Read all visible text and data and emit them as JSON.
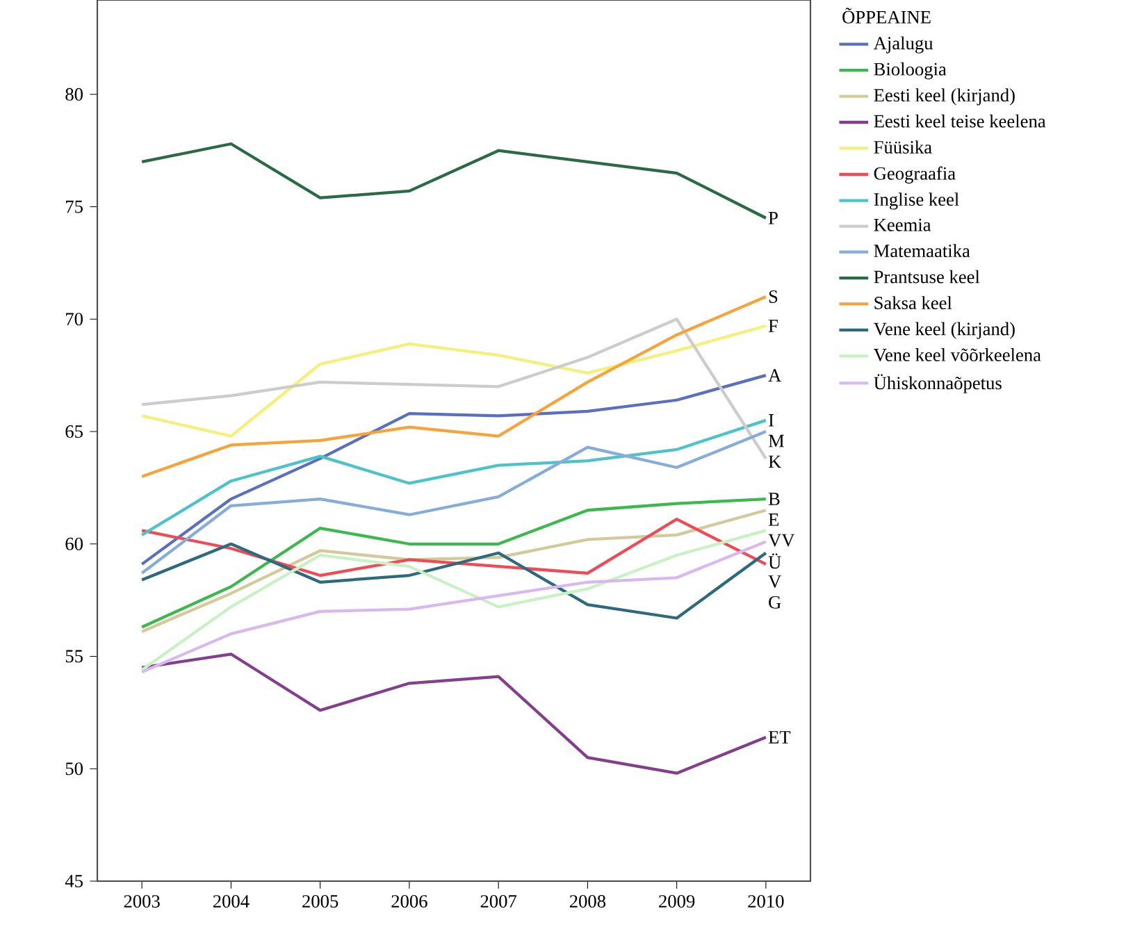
{
  "chart_data": {
    "type": "line",
    "legend_title": "ÕPPEAINE",
    "x": [
      2003,
      2004,
      2005,
      2006,
      2007,
      2008,
      2009,
      2010
    ],
    "xlim": [
      2002.5,
      2010.5
    ],
    "xticks": [
      2003,
      2004,
      2005,
      2006,
      2007,
      2008,
      2009,
      2010
    ],
    "ylim": [
      45,
      84.2
    ],
    "yticks": [
      45,
      50,
      55,
      60,
      65,
      70,
      75,
      80
    ],
    "grid": false,
    "legend": "right",
    "marker": "none",
    "line_style": "solid",
    "series": [
      {
        "name": "Ajalugu",
        "color": "#5a6fbf",
        "values": [
          59.1,
          62.0,
          63.8,
          65.8,
          65.7,
          65.9,
          66.4,
          67.5
        ]
      },
      {
        "name": "Bioloogia",
        "color": "#3cb94e",
        "values": [
          56.3,
          58.1,
          60.7,
          60.0,
          60.0,
          61.5,
          61.8,
          62.0
        ]
      },
      {
        "name": "Eesti keel (kirjand)",
        "color": "#d3c99b",
        "values": [
          56.1,
          57.8,
          59.7,
          59.3,
          59.4,
          60.2,
          60.4,
          61.5
        ]
      },
      {
        "name": "Eesti keel teise keelena",
        "color": "#843f8c",
        "values": [
          54.5,
          55.1,
          52.6,
          53.8,
          54.1,
          50.5,
          49.8,
          51.4
        ]
      },
      {
        "name": "Füüsika",
        "color": "#f5f07a",
        "values": [
          65.7,
          64.8,
          68.0,
          68.9,
          68.4,
          67.6,
          68.6,
          69.7
        ]
      },
      {
        "name": "Geograafia",
        "color": "#ef4b55",
        "values": [
          60.6,
          59.8,
          58.6,
          59.3,
          59.0,
          58.7,
          61.1,
          59.1
        ]
      },
      {
        "name": "Inglise keel",
        "color": "#4cc3c8",
        "values": [
          60.4,
          62.8,
          63.9,
          62.7,
          63.5,
          63.7,
          64.2,
          65.5
        ]
      },
      {
        "name": "Keemia",
        "color": "#cccccc",
        "values": [
          66.2,
          66.6,
          67.2,
          67.1,
          67.0,
          68.3,
          70.0,
          63.8
        ]
      },
      {
        "name": "Matemaatika",
        "color": "#86acdc",
        "values": [
          58.7,
          61.7,
          62.0,
          61.3,
          62.1,
          64.3,
          63.4,
          65.0
        ]
      },
      {
        "name": "Prantsuse keel",
        "color": "#2a6b45",
        "values": [
          77.0,
          77.8,
          75.4,
          75.7,
          77.5,
          77.0,
          76.5,
          74.5
        ]
      },
      {
        "name": "Saksa keel",
        "color": "#f8a23a",
        "values": [
          63.0,
          64.4,
          64.6,
          65.2,
          64.8,
          67.2,
          69.3,
          71.0
        ]
      },
      {
        "name": "Vene keel (kirjand)",
        "color": "#2e6a7e",
        "values": [
          58.4,
          60.0,
          58.3,
          58.6,
          59.6,
          57.3,
          56.7,
          59.6
        ]
      },
      {
        "name": "Vene keel võõrkeelena",
        "color": "#c8f2c4",
        "values": [
          54.4,
          57.2,
          59.5,
          59.0,
          57.2,
          58.0,
          59.5,
          60.6
        ]
      },
      {
        "name": "Ühiskonnaõpetus",
        "color": "#d9b8ef",
        "values": [
          54.3,
          56.0,
          57.0,
          57.1,
          57.7,
          58.3,
          58.5,
          60.1
        ]
      }
    ],
    "annotations": [
      "P",
      "S",
      "F",
      "A",
      "I",
      "M",
      "K",
      "B",
      "E",
      "VV",
      "Ü",
      "V",
      "G",
      "ET"
    ]
  }
}
